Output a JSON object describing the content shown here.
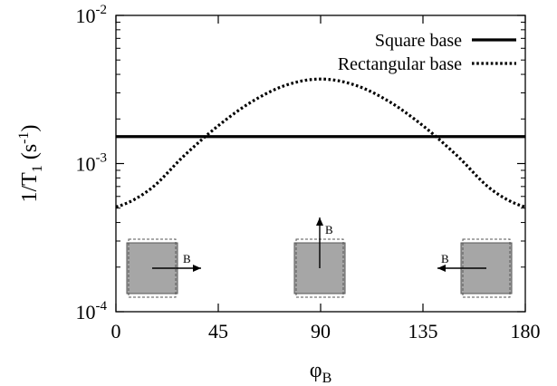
{
  "chart_data": {
    "type": "line",
    "xlabel": {
      "base": "φ",
      "sub": "B"
    },
    "ylabel": {
      "prefix": "1/T",
      "sub": "1",
      "mid": " (s",
      "sup": "-1",
      "suffix": ")"
    },
    "x_ticks": [
      {
        "value": 0,
        "label": "0"
      },
      {
        "value": 45,
        "label": "45"
      },
      {
        "value": 90,
        "label": "90"
      },
      {
        "value": 135,
        "label": "135"
      },
      {
        "value": 180,
        "label": "180"
      }
    ],
    "y_ticks": [
      {
        "value": 0.0001,
        "base": "10",
        "exp": "-4"
      },
      {
        "value": 0.001,
        "base": "10",
        "exp": "-3"
      },
      {
        "value": 0.01,
        "base": "10",
        "exp": "-2"
      }
    ],
    "xlim": [
      0,
      180
    ],
    "ylim": [
      0.0001,
      0.01
    ],
    "yscale": "log",
    "grid": false,
    "legend_position": "top-right",
    "series": [
      {
        "name": "Square base",
        "style": "solid",
        "color": "#000000",
        "x": [
          0,
          180
        ],
        "y": [
          0.00152,
          0.00152
        ]
      },
      {
        "name": "Rectangular base",
        "style": "dotted",
        "color": "#000000",
        "x": [
          0,
          15,
          30,
          45,
          60,
          75,
          90,
          105,
          120,
          135,
          150,
          165,
          180
        ],
        "y": [
          0.00051,
          0.00067,
          0.00113,
          0.0018,
          0.00263,
          0.00339,
          0.00372,
          0.00339,
          0.00263,
          0.0018,
          0.00113,
          0.00067,
          0.00051
        ]
      }
    ],
    "insets": [
      {
        "phi": 0,
        "field_label": "B",
        "arrow": "right"
      },
      {
        "phi": 90,
        "field_label": "B",
        "arrow": "up"
      },
      {
        "phi": 180,
        "field_label": "B",
        "arrow": "left"
      }
    ],
    "inset_colors": {
      "fill": "#a6a6a6",
      "stroke": "#555555",
      "dashed_stroke": "#555555"
    }
  }
}
